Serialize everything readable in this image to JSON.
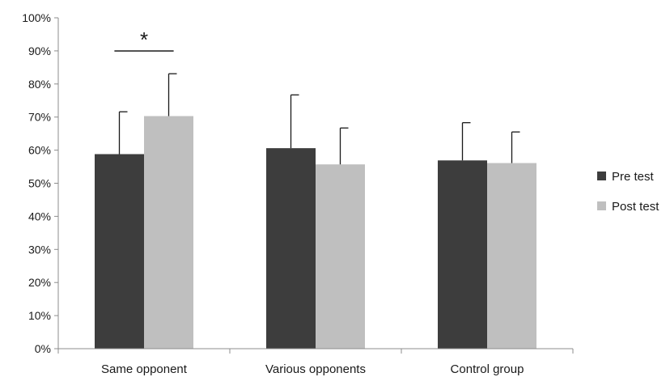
{
  "chart_data": {
    "type": "bar",
    "categories": [
      "Same opponent",
      "Various opponents",
      "Control group"
    ],
    "series": [
      {
        "name": "Pre test",
        "values": [
          58.8,
          60.6,
          56.9
        ],
        "error_plus": [
          12.8,
          16.1,
          11.4
        ],
        "color": "#3d3d3d"
      },
      {
        "name": "Post test",
        "values": [
          70.3,
          55.7,
          56.1
        ],
        "error_plus": [
          12.8,
          11.0,
          9.4
        ],
        "color": "#bfbfbf"
      }
    ],
    "ylim": [
      0,
      100
    ],
    "y_ticks": [
      "0%",
      "10%",
      "20%",
      "30%",
      "40%",
      "50%",
      "60%",
      "70%",
      "80%",
      "90%",
      "100%"
    ],
    "annotations": [
      {
        "text": "*",
        "category": "Same opponent"
      }
    ],
    "legend_position": "right",
    "grid": false,
    "title": "",
    "xlabel": "",
    "ylabel": ""
  }
}
